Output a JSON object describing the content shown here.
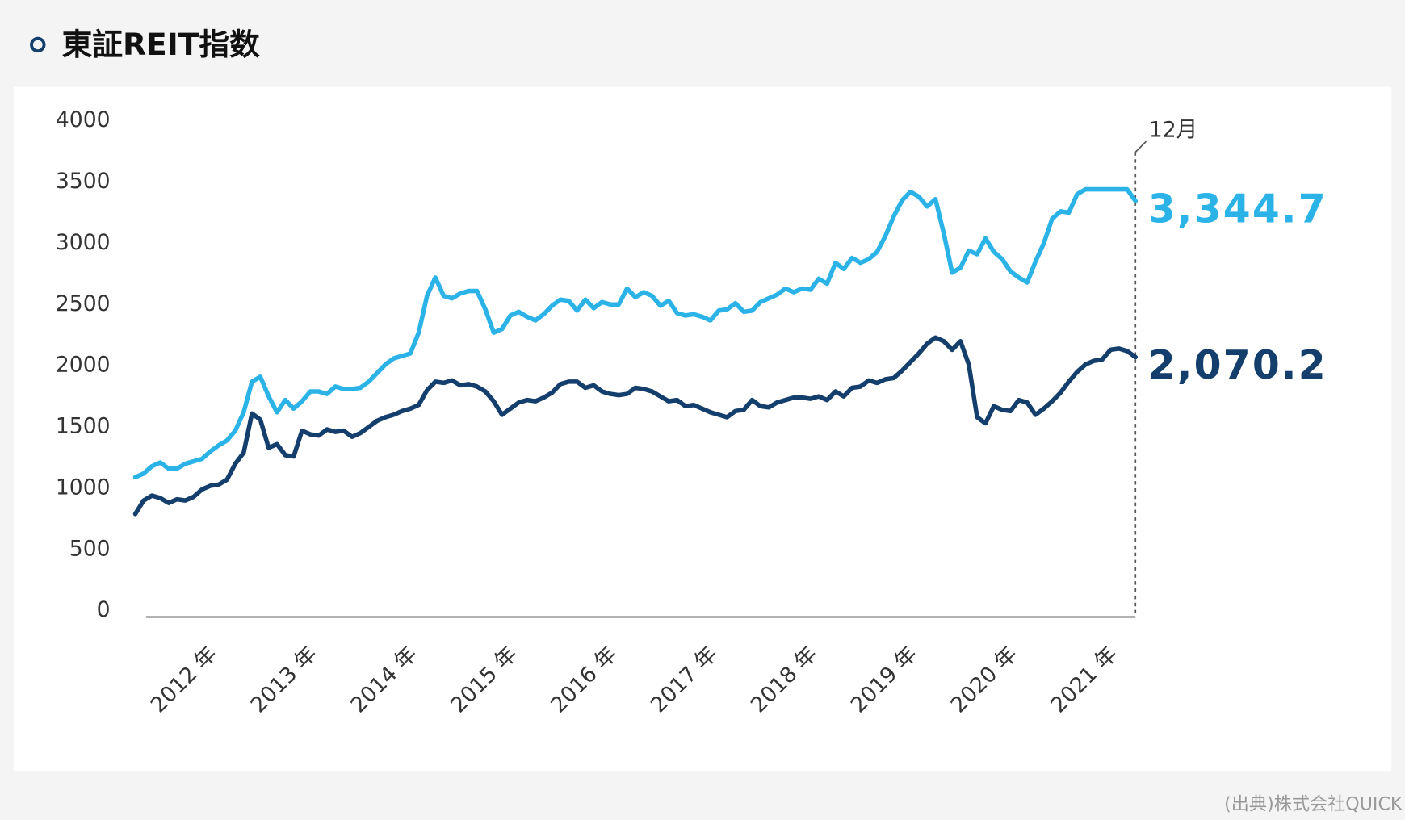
{
  "chart_data": {
    "type": "line",
    "title": "東証REIT指数",
    "annotation": "12月",
    "source": "(出典)株式会社QUICK",
    "categories": [
      null,
      null,
      null,
      null,
      null,
      null,
      null,
      null,
      null,
      "2012 年",
      null,
      null,
      null,
      null,
      null,
      null,
      null,
      null,
      null,
      null,
      null,
      "2013 年",
      null,
      null,
      null,
      null,
      null,
      null,
      null,
      null,
      null,
      null,
      null,
      "2014 年",
      null,
      null,
      null,
      null,
      null,
      null,
      null,
      null,
      null,
      null,
      null,
      "2015 年",
      null,
      null,
      null,
      null,
      null,
      null,
      null,
      null,
      null,
      null,
      null,
      "2016 年",
      null,
      null,
      null,
      null,
      null,
      null,
      null,
      null,
      null,
      null,
      null,
      "2017 年",
      null,
      null,
      null,
      null,
      null,
      null,
      null,
      null,
      null,
      null,
      null,
      "2018 年",
      null,
      null,
      null,
      null,
      null,
      null,
      null,
      null,
      null,
      null,
      null,
      "2019 年",
      null,
      null,
      null,
      null,
      null,
      null,
      null,
      null,
      null,
      null,
      null,
      "2020 年",
      null,
      null,
      null,
      null,
      null,
      null,
      null,
      null,
      null,
      null,
      null,
      "2021 年",
      null,
      null,
      null
    ],
    "series": [
      {
        "color": "#2bb3e8",
        "values": [
          1090,
          1120,
          1180,
          1210,
          1160,
          1160,
          1200,
          1220,
          1240,
          1300,
          1350,
          1390,
          1470,
          1620,
          1870,
          1910,
          1750,
          1620,
          1720,
          1650,
          1710,
          1790,
          1790,
          1770,
          1830,
          1810,
          1810,
          1820,
          1870,
          1940,
          2010,
          2060,
          2080,
          2100,
          2270,
          2570,
          2720,
          2570,
          2550,
          2590,
          2610,
          2610,
          2460,
          2270,
          2300,
          2410,
          2440,
          2400,
          2370,
          2420,
          2490,
          2540,
          2530,
          2450,
          2540,
          2470,
          2520,
          2500,
          2500,
          2630,
          2560,
          2600,
          2570,
          2490,
          2530,
          2430,
          2410,
          2420,
          2400,
          2370,
          2450,
          2460,
          2510,
          2440,
          2450,
          2520,
          2550,
          2580,
          2630,
          2600,
          2630,
          2620,
          2710,
          2670,
          2840,
          2790,
          2880,
          2840,
          2870,
          2930,
          3060,
          3220,
          3350,
          3420,
          3380,
          3300,
          3360,
          3080,
          2760,
          2800,
          2940,
          2910,
          3040,
          2930,
          2870,
          2770,
          2720,
          2680,
          2850,
          3000,
          3200,
          3260,
          3250,
          3400,
          3440,
          3440,
          3440,
          3440,
          3440,
          3440,
          3344.7
        ],
        "value_labels": [
          null,
          null,
          null,
          null,
          null,
          null,
          null,
          null,
          null,
          null,
          null,
          null,
          null,
          null,
          null,
          null,
          null,
          null,
          null,
          null,
          null,
          null,
          null,
          null,
          null,
          null,
          null,
          null,
          null,
          null,
          null,
          null,
          null,
          null,
          null,
          null,
          null,
          null,
          null,
          null,
          null,
          null,
          null,
          null,
          null,
          null,
          null,
          null,
          null,
          null,
          null,
          null,
          null,
          null,
          null,
          null,
          null,
          null,
          null,
          null,
          null,
          null,
          null,
          null,
          null,
          null,
          null,
          null,
          null,
          null,
          null,
          null,
          null,
          null,
          null,
          null,
          null,
          null,
          null,
          null,
          null,
          null,
          null,
          null,
          null,
          null,
          null,
          null,
          null,
          null,
          null,
          null,
          null,
          null,
          null,
          null,
          null,
          null,
          null,
          null,
          null,
          null,
          null,
          null,
          null,
          null,
          null,
          null,
          null,
          null,
          null,
          null,
          null,
          null,
          null,
          null,
          null,
          null,
          null,
          null,
          "3,344.7"
        ]
      },
      {
        "color": "#143f6c",
        "values": [
          790,
          900,
          940,
          920,
          880,
          910,
          900,
          930,
          990,
          1020,
          1030,
          1070,
          1200,
          1290,
          1610,
          1560,
          1330,
          1360,
          1270,
          1260,
          1470,
          1440,
          1430,
          1480,
          1460,
          1470,
          1420,
          1450,
          1500,
          1550,
          1580,
          1600,
          1630,
          1650,
          1680,
          1800,
          1870,
          1860,
          1880,
          1840,
          1850,
          1830,
          1790,
          1710,
          1600,
          1650,
          1700,
          1720,
          1710,
          1740,
          1780,
          1850,
          1870,
          1870,
          1820,
          1840,
          1790,
          1770,
          1760,
          1770,
          1820,
          1810,
          1790,
          1750,
          1710,
          1720,
          1670,
          1680,
          1650,
          1620,
          1600,
          1580,
          1630,
          1640,
          1720,
          1670,
          1660,
          1700,
          1720,
          1740,
          1740,
          1730,
          1750,
          1720,
          1790,
          1750,
          1820,
          1830,
          1880,
          1860,
          1890,
          1900,
          1960,
          2030,
          2100,
          2180,
          2230,
          2200,
          2130,
          2200,
          2010,
          1580,
          1530,
          1670,
          1640,
          1630,
          1720,
          1700,
          1600,
          1650,
          1710,
          1780,
          1870,
          1950,
          2010,
          2040,
          2050,
          2130,
          2140,
          2120,
          2070.2
        ],
        "value_labels": [
          null,
          null,
          null,
          null,
          null,
          null,
          null,
          null,
          null,
          null,
          null,
          null,
          null,
          null,
          null,
          null,
          null,
          null,
          null,
          null,
          null,
          null,
          null,
          null,
          null,
          null,
          null,
          null,
          null,
          null,
          null,
          null,
          null,
          null,
          null,
          null,
          null,
          null,
          null,
          null,
          null,
          null,
          null,
          null,
          null,
          null,
          null,
          null,
          null,
          null,
          null,
          null,
          null,
          null,
          null,
          null,
          null,
          null,
          null,
          null,
          null,
          null,
          null,
          null,
          null,
          null,
          null,
          null,
          null,
          null,
          null,
          null,
          null,
          null,
          null,
          null,
          null,
          null,
          null,
          null,
          null,
          null,
          null,
          null,
          null,
          null,
          null,
          null,
          null,
          null,
          null,
          null,
          null,
          null,
          null,
          null,
          null,
          null,
          null,
          null,
          null,
          null,
          null,
          null,
          null,
          null,
          null,
          null,
          null,
          null,
          null,
          null,
          null,
          null,
          null,
          null,
          null,
          null,
          null,
          null,
          "2,070.2"
        ]
      }
    ],
    "ylim": [
      0,
      4000
    ],
    "yticks": [
      0,
      500,
      1000,
      1500,
      2000,
      2500,
      3000,
      3500,
      4000
    ]
  }
}
